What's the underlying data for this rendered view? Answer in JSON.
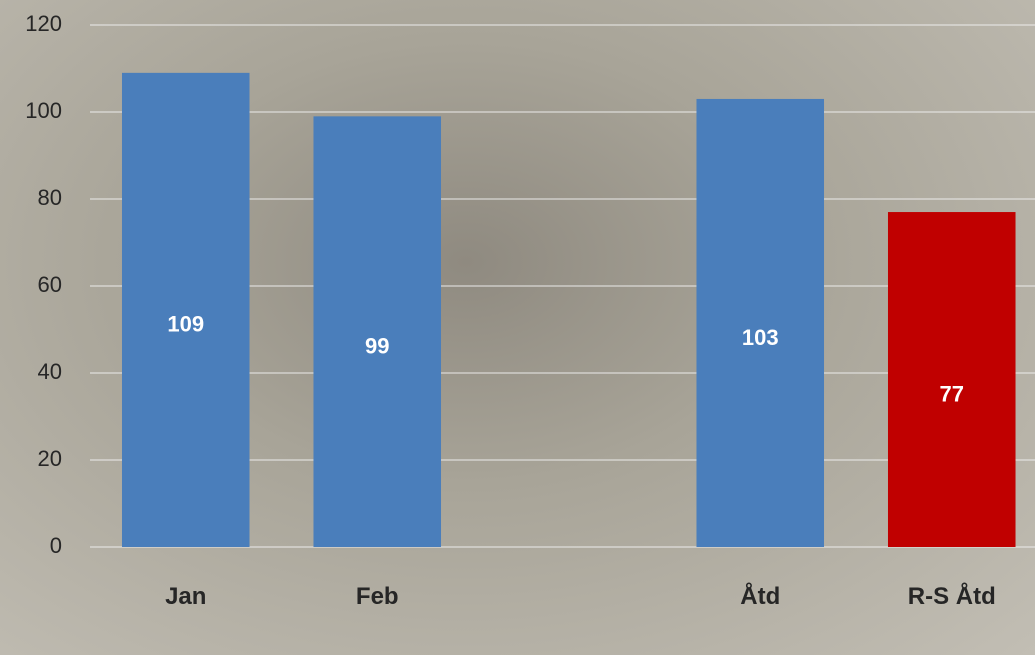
{
  "chart_data": {
    "type": "bar",
    "categories": [
      "Jan",
      "Feb",
      null,
      "Åtd",
      "R-S Åtd"
    ],
    "values": [
      109,
      99,
      null,
      103,
      77
    ],
    "colors": [
      "#4a7ebb",
      "#4a7ebb",
      null,
      "#4a7ebb",
      "#c00000"
    ],
    "ylim": [
      0,
      120
    ],
    "yticks": [
      0,
      20,
      40,
      60,
      80,
      100,
      120
    ],
    "grid": true
  }
}
